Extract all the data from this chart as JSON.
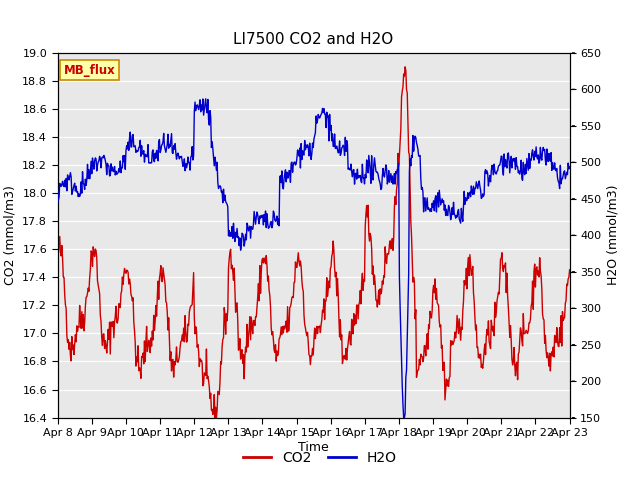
{
  "title": "LI7500 CO2 and H2O",
  "xlabel": "Time",
  "ylabel_left": "CO2 (mmol/m3)",
  "ylabel_right": "H2O (mmol/m3)",
  "ylim_left": [
    16.4,
    19.0
  ],
  "ylim_right": [
    150,
    650
  ],
  "xtick_labels": [
    "Apr 8",
    "Apr 9",
    "Apr 10",
    "Apr 11",
    "Apr 12",
    "Apr 13",
    "Apr 14",
    "Apr 15",
    "Apr 16",
    "Apr 17",
    "Apr 18",
    "Apr 19",
    "Apr 20",
    "Apr 21",
    "Apr 22",
    "Apr 23"
  ],
  "yticks_left": [
    16.4,
    16.6,
    16.8,
    17.0,
    17.2,
    17.4,
    17.6,
    17.8,
    18.0,
    18.2,
    18.4,
    18.6,
    18.8,
    19.0
  ],
  "yticks_right": [
    150,
    200,
    250,
    300,
    350,
    400,
    450,
    500,
    550,
    600,
    650
  ],
  "co2_color": "#cc0000",
  "h2o_color": "#0000cc",
  "fig_facecolor": "#ffffff",
  "plot_facecolor": "#e8e8e8",
  "grid_color": "#f5f5f5",
  "watermark_text": "MB_flux",
  "watermark_bg": "#ffffaa",
  "watermark_border": "#cc8800",
  "legend_co2": "CO2",
  "legend_h2o": "H2O",
  "title_fontsize": 11,
  "axis_fontsize": 9,
  "tick_fontsize": 8,
  "linewidth": 1.0,
  "n_days": 15,
  "n_points": 720
}
